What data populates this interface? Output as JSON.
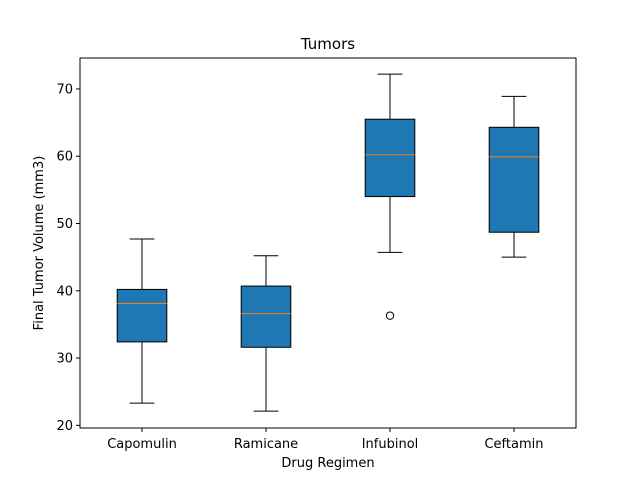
{
  "chart_data": {
    "type": "boxplot",
    "title": "Tumors",
    "xlabel": "Drug Regimen",
    "ylabel": "Final Tumor Volume (mm3)",
    "categories": [
      "Capomulin",
      "Ramicane",
      "Infubinol",
      "Ceftamin"
    ],
    "boxes": [
      {
        "category": "Capomulin",
        "whisker_low": 23.3,
        "q1": 32.4,
        "median": 38.1,
        "q3": 40.2,
        "whisker_high": 47.7,
        "outliers": []
      },
      {
        "category": "Ramicane",
        "whisker_low": 22.1,
        "q1": 31.6,
        "median": 36.6,
        "q3": 40.7,
        "whisker_high": 45.2,
        "outliers": []
      },
      {
        "category": "Infubinol",
        "whisker_low": 45.7,
        "q1": 54.0,
        "median": 60.2,
        "q3": 65.5,
        "whisker_high": 72.2,
        "outliers": [
          36.3
        ]
      },
      {
        "category": "Ceftamin",
        "whisker_low": 45.0,
        "q1": 48.7,
        "median": 59.9,
        "q3": 64.3,
        "whisker_high": 68.9,
        "outliers": []
      }
    ],
    "ylim": [
      19.6,
      74.6
    ],
    "yticks": [
      20,
      30,
      40,
      50,
      60,
      70
    ],
    "grid": false,
    "legend": "none",
    "colors": {
      "box_fill": "#1f77b4",
      "median": "#ff7f0e",
      "line": "#000000"
    }
  }
}
